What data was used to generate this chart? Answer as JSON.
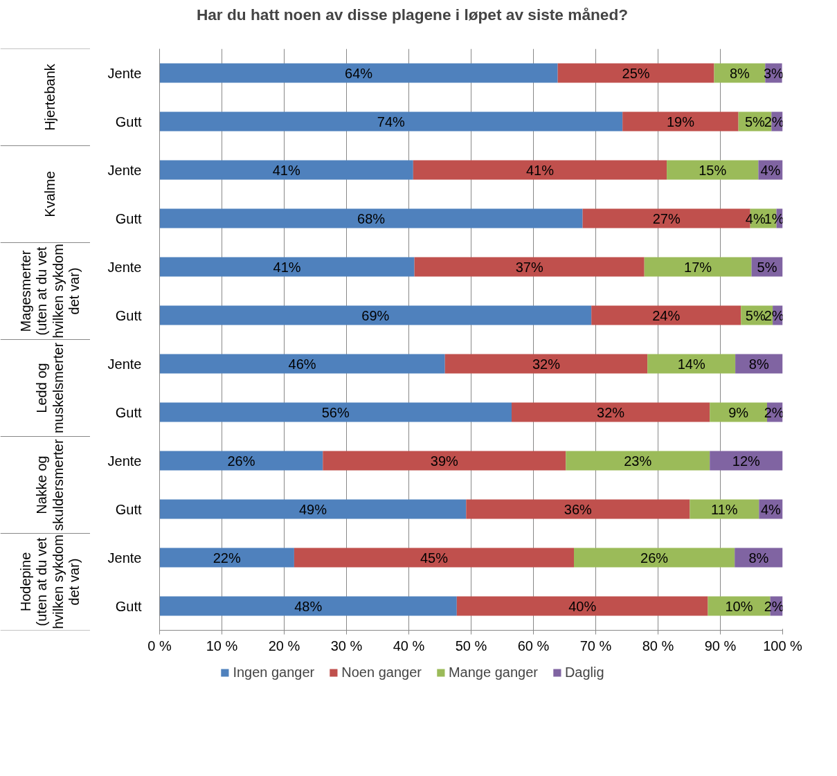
{
  "chart_data": {
    "type": "bar",
    "orientation": "horizontal",
    "stacked": true,
    "title": "Har du hatt noen av disse plagene i løpet av siste måned?",
    "categories": [
      "Jente",
      "Gutt",
      "Jente",
      "Gutt",
      "Jente",
      "Gutt",
      "Jente",
      "Gutt",
      "Jente",
      "Gutt",
      "Jente",
      "Gutt"
    ],
    "annotations": [
      "Hjertebank",
      "Kvalme",
      "Magesmerter\n(uten at du vet\nhvilken sykdom\ndet var)",
      "Ledd og\nmuskelsmerter",
      "Nakke og\nskuldersmerter",
      "Hodepine\n(uten at du vet\nhvilken sykdom\ndet var)"
    ],
    "series": [
      {
        "name": "Ingen ganger",
        "color": "#4f81bd",
        "values": [
          63.9,
          74.3,
          40.7,
          67.9,
          40.9,
          69.3,
          45.8,
          56.5,
          26.2,
          49.2,
          21.6,
          47.7
        ],
        "value_labels": [
          "64%",
          "74%",
          "41%",
          "68%",
          "41%",
          "69%",
          "46%",
          "56%",
          "26%",
          "49%",
          "22%",
          "48%"
        ]
      },
      {
        "name": "Noen ganger",
        "color": "#c0504d",
        "values": [
          25.1,
          18.6,
          40.7,
          26.9,
          36.9,
          24.0,
          32.5,
          31.8,
          39.0,
          35.9,
          44.9,
          40.3
        ],
        "value_labels": [
          "25%",
          "19%",
          "41%",
          "27%",
          "37%",
          "24%",
          "32%",
          "32%",
          "39%",
          "36%",
          "45%",
          "40%"
        ]
      },
      {
        "name": "Mange ganger",
        "color": "#9bbb59",
        "values": [
          8.2,
          5.3,
          14.7,
          4.2,
          17.2,
          5.1,
          14.1,
          9.2,
          23.1,
          11.1,
          25.8,
          10.0
        ],
        "value_labels": [
          "8%",
          "5%",
          "15%",
          "4%",
          "17%",
          "5%",
          "14%",
          "9%",
          "23%",
          "11%",
          "26%",
          "10%"
        ]
      },
      {
        "name": "Daglig",
        "color": "#8064a2",
        "values": [
          2.7,
          1.8,
          3.9,
          1.0,
          5.0,
          1.6,
          7.6,
          2.5,
          11.7,
          3.8,
          7.7,
          2.0
        ],
        "value_labels": [
          "3%",
          "2%",
          "4%",
          "1%",
          "5%",
          "2%",
          "8%",
          "2%",
          "12%",
          "4%",
          "8%",
          "2%"
        ]
      }
    ],
    "xlim": [
      0,
      100
    ],
    "xticks": [
      {
        "value": 0,
        "label": "0 %"
      },
      {
        "value": 10,
        "label": "10 %"
      },
      {
        "value": 20,
        "label": "20 %"
      },
      {
        "value": 30,
        "label": "30 %"
      },
      {
        "value": 40,
        "label": "40 %"
      },
      {
        "value": 50,
        "label": "50 %"
      },
      {
        "value": 60,
        "label": "60 %"
      },
      {
        "value": 70,
        "label": "70 %"
      },
      {
        "value": 80,
        "label": "80 %"
      },
      {
        "value": 90,
        "label": "90 %"
      },
      {
        "value": 100,
        "label": "100 %"
      }
    ],
    "grid": "x",
    "legend": "bottom"
  }
}
